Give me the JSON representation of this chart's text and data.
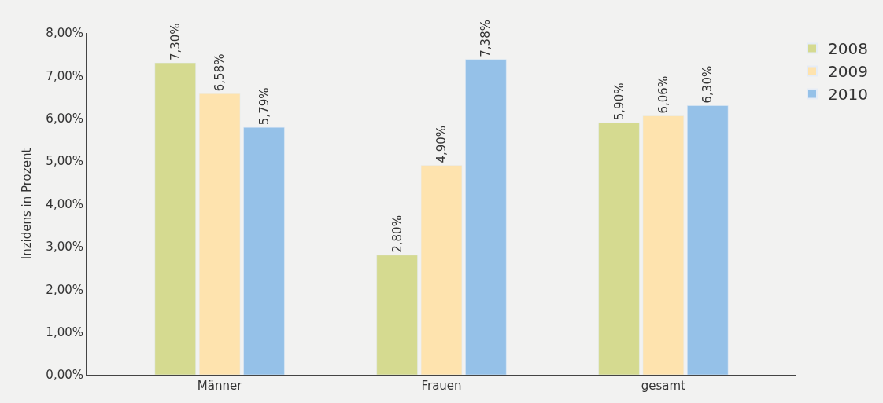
{
  "chart_data": {
    "type": "bar",
    "ylabel": "Inzidens in Prozent",
    "categories": [
      "Männer",
      "Frauen",
      "gesamt"
    ],
    "series": [
      {
        "name": "2008",
        "color": "#d5da90",
        "values": [
          7.3,
          2.8,
          5.9
        ],
        "value_labels": [
          "7,30%",
          "2,80%",
          "5,90%"
        ]
      },
      {
        "name": "2009",
        "color": "#fee3ae",
        "values": [
          6.58,
          4.9,
          6.06
        ],
        "value_labels": [
          "6,58%",
          "4,90%",
          "6,06%"
        ]
      },
      {
        "name": "2010",
        "color": "#95c1e8",
        "values": [
          5.79,
          7.38,
          6.3
        ],
        "value_labels": [
          "5,79%",
          "7,38%",
          "6,30%"
        ]
      }
    ],
    "ylim": [
      0,
      8
    ],
    "yticks": [
      {
        "value": 0,
        "label": "0,00%"
      },
      {
        "value": 1,
        "label": "1,00%"
      },
      {
        "value": 2,
        "label": "2,00%"
      },
      {
        "value": 3,
        "label": "3,00%"
      },
      {
        "value": 4,
        "label": "4,00%"
      },
      {
        "value": 5,
        "label": "5,00%"
      },
      {
        "value": 6,
        "label": "6,00%"
      },
      {
        "value": 7,
        "label": "7,00%"
      },
      {
        "value": 8,
        "label": "8,00%"
      }
    ],
    "grid": false,
    "legend": "top right"
  }
}
